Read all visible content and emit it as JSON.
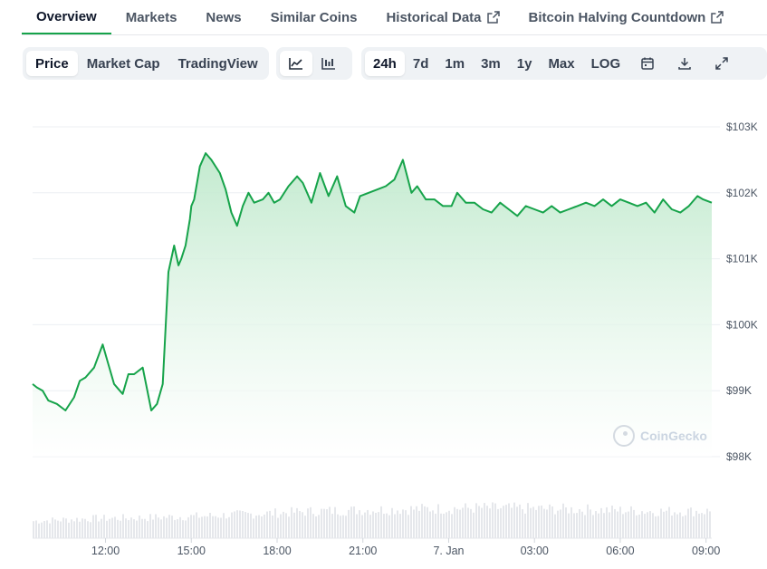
{
  "tabs": [
    {
      "label": "Overview",
      "active": true,
      "external": false
    },
    {
      "label": "Markets",
      "active": false,
      "external": false
    },
    {
      "label": "News",
      "active": false,
      "external": false
    },
    {
      "label": "Similar Coins",
      "active": false,
      "external": false
    },
    {
      "label": "Historical Data",
      "active": false,
      "external": true
    },
    {
      "label": "Bitcoin Halving Countdown",
      "active": false,
      "external": true
    }
  ],
  "toolbar": {
    "chart_kind": [
      "Price",
      "Market Cap",
      "TradingView"
    ],
    "chart_kind_selected": "Price",
    "chart_style_selected": "line-chart-icon",
    "ranges": [
      "24h",
      "7d",
      "1m",
      "3m",
      "1y",
      "Max",
      "LOG"
    ],
    "range_selected": "24h"
  },
  "watermark": "CoinGecko",
  "colors": {
    "line": "#16a34a",
    "fill_top": "#c5ecd2",
    "volume": "#e5e7eb",
    "accent": "#16a34a"
  },
  "chart_data": {
    "type": "area",
    "title": "",
    "xlabel": "",
    "ylabel": "",
    "y_tick_labels": [
      "$103K",
      "$102K",
      "$101K",
      "$100K",
      "$99K",
      "$98K"
    ],
    "y_ticks": [
      103000,
      102000,
      101000,
      100000,
      99000,
      98000
    ],
    "ylim": [
      98000,
      103000
    ],
    "x_tick_labels": [
      "12:00",
      "15:00",
      "18:00",
      "21:00",
      "7. Jan",
      "03:00",
      "06:00",
      "09:00"
    ],
    "x_tick_hours": [
      12,
      15,
      18,
      21,
      24,
      27,
      30,
      33
    ],
    "xlim_hours": [
      9.45,
      33.2
    ],
    "grid": "horizontal",
    "series": [
      {
        "x_hours": [
          9.45,
          9.6,
          9.8,
          10.0,
          10.3,
          10.6,
          10.9,
          11.1,
          11.3,
          11.6,
          11.9,
          12.1,
          12.3,
          12.5,
          12.6,
          12.8,
          13.0,
          13.3,
          13.6,
          13.8,
          14.0,
          14.2,
          14.4,
          14.55,
          14.65,
          14.8,
          14.95,
          15.0,
          15.1,
          15.3,
          15.5,
          15.7,
          16.0,
          16.2,
          16.4,
          16.6,
          16.8,
          17.0,
          17.2,
          17.5,
          17.7,
          17.9,
          18.1,
          18.4,
          18.7,
          18.9,
          19.2,
          19.5,
          19.8,
          20.1,
          20.4,
          20.7,
          20.9,
          21.2,
          21.5,
          21.8,
          22.1,
          22.4,
          22.7,
          22.9,
          23.2,
          23.5,
          23.8,
          24.1,
          24.3,
          24.6,
          24.9,
          25.2,
          25.5,
          25.8,
          26.1,
          26.4,
          26.7,
          27.0,
          27.3,
          27.6,
          27.9,
          28.2,
          28.5,
          28.8,
          29.1,
          29.4,
          29.7,
          30.0,
          30.3,
          30.6,
          30.9,
          31.2,
          31.5,
          31.8,
          32.1,
          32.4,
          32.7,
          32.9,
          33.2
        ],
        "values": [
          99100,
          99050,
          99000,
          98850,
          98800,
          98700,
          98900,
          99150,
          99200,
          99350,
          99700,
          99400,
          99100,
          99000,
          98950,
          99250,
          99250,
          99350,
          98700,
          98800,
          99100,
          100800,
          101200,
          100900,
          101000,
          101200,
          101600,
          101800,
          101900,
          102400,
          102600,
          102500,
          102300,
          102050,
          101700,
          101500,
          101800,
          102000,
          101850,
          101900,
          102000,
          101850,
          101900,
          102100,
          102250,
          102150,
          101850,
          102300,
          101950,
          102250,
          101800,
          101700,
          101950,
          102000,
          102050,
          102100,
          102200,
          102500,
          102000,
          102100,
          101900,
          101900,
          101800,
          101800,
          102000,
          101850,
          101850,
          101750,
          101700,
          101850,
          101750,
          101650,
          101800,
          101750,
          101700,
          101800,
          101700,
          101750,
          101800,
          101850,
          101800,
          101900,
          101800,
          101900,
          101850,
          101800,
          101850,
          101700,
          101900,
          101750,
          101700,
          101800,
          101950,
          101900,
          101850
        ]
      }
    ],
    "volume": {
      "shown": true,
      "trend": [
        0.35,
        0.4,
        0.42,
        0.45,
        0.5,
        0.55,
        0.58,
        0.6,
        0.62,
        0.6,
        0.58,
        0.55,
        0.55
      ]
    }
  }
}
